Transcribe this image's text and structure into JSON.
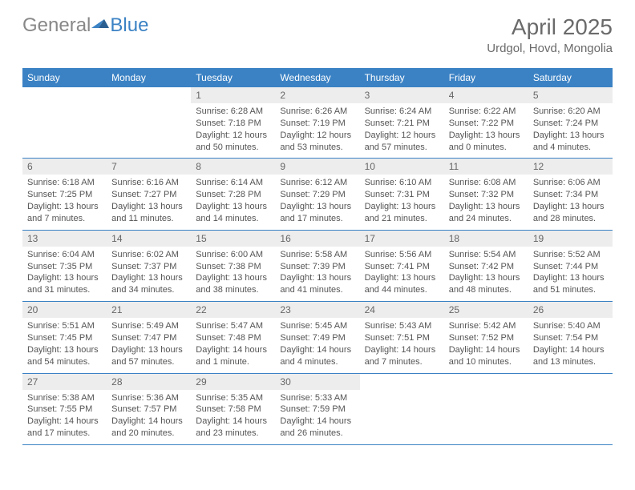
{
  "logo": {
    "general": "General",
    "blue": "Blue"
  },
  "header": {
    "title": "April 2025",
    "location": "Urdgol, Hovd, Mongolia"
  },
  "colors": {
    "header_bg": "#3b82c4",
    "header_text": "#ffffff",
    "daynum_bg": "#ededed",
    "text": "#555555",
    "rule": "#3b82c4"
  },
  "day_names": [
    "Sunday",
    "Monday",
    "Tuesday",
    "Wednesday",
    "Thursday",
    "Friday",
    "Saturday"
  ],
  "weeks": [
    [
      {
        "day": null
      },
      {
        "day": null
      },
      {
        "day": "1",
        "sunrise": "Sunrise: 6:28 AM",
        "sunset": "Sunset: 7:18 PM",
        "daylight": "Daylight: 12 hours and 50 minutes."
      },
      {
        "day": "2",
        "sunrise": "Sunrise: 6:26 AM",
        "sunset": "Sunset: 7:19 PM",
        "daylight": "Daylight: 12 hours and 53 minutes."
      },
      {
        "day": "3",
        "sunrise": "Sunrise: 6:24 AM",
        "sunset": "Sunset: 7:21 PM",
        "daylight": "Daylight: 12 hours and 57 minutes."
      },
      {
        "day": "4",
        "sunrise": "Sunrise: 6:22 AM",
        "sunset": "Sunset: 7:22 PM",
        "daylight": "Daylight: 13 hours and 0 minutes."
      },
      {
        "day": "5",
        "sunrise": "Sunrise: 6:20 AM",
        "sunset": "Sunset: 7:24 PM",
        "daylight": "Daylight: 13 hours and 4 minutes."
      }
    ],
    [
      {
        "day": "6",
        "sunrise": "Sunrise: 6:18 AM",
        "sunset": "Sunset: 7:25 PM",
        "daylight": "Daylight: 13 hours and 7 minutes."
      },
      {
        "day": "7",
        "sunrise": "Sunrise: 6:16 AM",
        "sunset": "Sunset: 7:27 PM",
        "daylight": "Daylight: 13 hours and 11 minutes."
      },
      {
        "day": "8",
        "sunrise": "Sunrise: 6:14 AM",
        "sunset": "Sunset: 7:28 PM",
        "daylight": "Daylight: 13 hours and 14 minutes."
      },
      {
        "day": "9",
        "sunrise": "Sunrise: 6:12 AM",
        "sunset": "Sunset: 7:29 PM",
        "daylight": "Daylight: 13 hours and 17 minutes."
      },
      {
        "day": "10",
        "sunrise": "Sunrise: 6:10 AM",
        "sunset": "Sunset: 7:31 PM",
        "daylight": "Daylight: 13 hours and 21 minutes."
      },
      {
        "day": "11",
        "sunrise": "Sunrise: 6:08 AM",
        "sunset": "Sunset: 7:32 PM",
        "daylight": "Daylight: 13 hours and 24 minutes."
      },
      {
        "day": "12",
        "sunrise": "Sunrise: 6:06 AM",
        "sunset": "Sunset: 7:34 PM",
        "daylight": "Daylight: 13 hours and 28 minutes."
      }
    ],
    [
      {
        "day": "13",
        "sunrise": "Sunrise: 6:04 AM",
        "sunset": "Sunset: 7:35 PM",
        "daylight": "Daylight: 13 hours and 31 minutes."
      },
      {
        "day": "14",
        "sunrise": "Sunrise: 6:02 AM",
        "sunset": "Sunset: 7:37 PM",
        "daylight": "Daylight: 13 hours and 34 minutes."
      },
      {
        "day": "15",
        "sunrise": "Sunrise: 6:00 AM",
        "sunset": "Sunset: 7:38 PM",
        "daylight": "Daylight: 13 hours and 38 minutes."
      },
      {
        "day": "16",
        "sunrise": "Sunrise: 5:58 AM",
        "sunset": "Sunset: 7:39 PM",
        "daylight": "Daylight: 13 hours and 41 minutes."
      },
      {
        "day": "17",
        "sunrise": "Sunrise: 5:56 AM",
        "sunset": "Sunset: 7:41 PM",
        "daylight": "Daylight: 13 hours and 44 minutes."
      },
      {
        "day": "18",
        "sunrise": "Sunrise: 5:54 AM",
        "sunset": "Sunset: 7:42 PM",
        "daylight": "Daylight: 13 hours and 48 minutes."
      },
      {
        "day": "19",
        "sunrise": "Sunrise: 5:52 AM",
        "sunset": "Sunset: 7:44 PM",
        "daylight": "Daylight: 13 hours and 51 minutes."
      }
    ],
    [
      {
        "day": "20",
        "sunrise": "Sunrise: 5:51 AM",
        "sunset": "Sunset: 7:45 PM",
        "daylight": "Daylight: 13 hours and 54 minutes."
      },
      {
        "day": "21",
        "sunrise": "Sunrise: 5:49 AM",
        "sunset": "Sunset: 7:47 PM",
        "daylight": "Daylight: 13 hours and 57 minutes."
      },
      {
        "day": "22",
        "sunrise": "Sunrise: 5:47 AM",
        "sunset": "Sunset: 7:48 PM",
        "daylight": "Daylight: 14 hours and 1 minute."
      },
      {
        "day": "23",
        "sunrise": "Sunrise: 5:45 AM",
        "sunset": "Sunset: 7:49 PM",
        "daylight": "Daylight: 14 hours and 4 minutes."
      },
      {
        "day": "24",
        "sunrise": "Sunrise: 5:43 AM",
        "sunset": "Sunset: 7:51 PM",
        "daylight": "Daylight: 14 hours and 7 minutes."
      },
      {
        "day": "25",
        "sunrise": "Sunrise: 5:42 AM",
        "sunset": "Sunset: 7:52 PM",
        "daylight": "Daylight: 14 hours and 10 minutes."
      },
      {
        "day": "26",
        "sunrise": "Sunrise: 5:40 AM",
        "sunset": "Sunset: 7:54 PM",
        "daylight": "Daylight: 14 hours and 13 minutes."
      }
    ],
    [
      {
        "day": "27",
        "sunrise": "Sunrise: 5:38 AM",
        "sunset": "Sunset: 7:55 PM",
        "daylight": "Daylight: 14 hours and 17 minutes."
      },
      {
        "day": "28",
        "sunrise": "Sunrise: 5:36 AM",
        "sunset": "Sunset: 7:57 PM",
        "daylight": "Daylight: 14 hours and 20 minutes."
      },
      {
        "day": "29",
        "sunrise": "Sunrise: 5:35 AM",
        "sunset": "Sunset: 7:58 PM",
        "daylight": "Daylight: 14 hours and 23 minutes."
      },
      {
        "day": "30",
        "sunrise": "Sunrise: 5:33 AM",
        "sunset": "Sunset: 7:59 PM",
        "daylight": "Daylight: 14 hours and 26 minutes."
      },
      {
        "day": null
      },
      {
        "day": null
      },
      {
        "day": null
      }
    ]
  ]
}
